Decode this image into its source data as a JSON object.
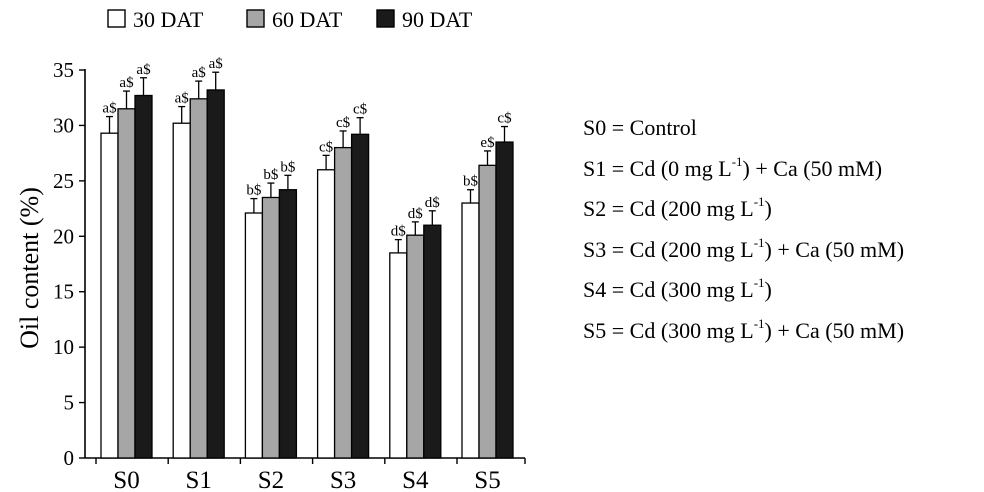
{
  "chart_data": {
    "type": "bar",
    "categories": [
      "S0",
      "S1",
      "S2",
      "S3",
      "S4",
      "S5"
    ],
    "series": [
      {
        "name": "30 DAT",
        "color": "#ffffff",
        "values": [
          29.3,
          30.2,
          22.1,
          26.0,
          18.5,
          23.0
        ],
        "errors": [
          1.5,
          1.5,
          1.3,
          1.3,
          1.2,
          1.2
        ],
        "labels": [
          "a$",
          "a$",
          "b$",
          "c$",
          "d$",
          "b$"
        ]
      },
      {
        "name": "60 DAT",
        "color": "#a6a6a6",
        "values": [
          31.5,
          32.4,
          23.5,
          28.0,
          20.1,
          26.4
        ],
        "errors": [
          1.6,
          1.6,
          1.3,
          1.5,
          1.2,
          1.3
        ],
        "labels": [
          "a$",
          "a$",
          "b$",
          "c$",
          "d$",
          "e$"
        ]
      },
      {
        "name": "90 DAT",
        "color": "#1a1a1a",
        "values": [
          32.7,
          33.2,
          24.2,
          29.2,
          21.0,
          28.5
        ],
        "errors": [
          1.6,
          1.6,
          1.3,
          1.5,
          1.3,
          1.4
        ],
        "labels": [
          "a$",
          "a$",
          "b$",
          "c$",
          "d$",
          "c$"
        ]
      }
    ],
    "ylabel": "Oil content (%)",
    "xlabel": "",
    "ylim": [
      0,
      35
    ],
    "yticks": [
      0,
      5,
      10,
      15,
      20,
      25,
      30,
      35
    ],
    "grid": false,
    "legend_position": "top"
  },
  "notes": [
    {
      "before": "S0 = Control",
      "sup": "",
      "after": ""
    },
    {
      "before": "S1 = Cd (0 mg L",
      "sup": "-1",
      "after": ") + Ca (50 mM)"
    },
    {
      "before": "S2 = Cd (200 mg L",
      "sup": "-1",
      "after": ")"
    },
    {
      "before": "S3 = Cd (200 mg L",
      "sup": "-1",
      "after": ") + Ca (50 mM)"
    },
    {
      "before": "S4 = Cd (300 mg L",
      "sup": "-1",
      "after": ")"
    },
    {
      "before": "S5 = Cd (300 mg L",
      "sup": "-1",
      "after": ") + Ca (50 mM)"
    }
  ]
}
